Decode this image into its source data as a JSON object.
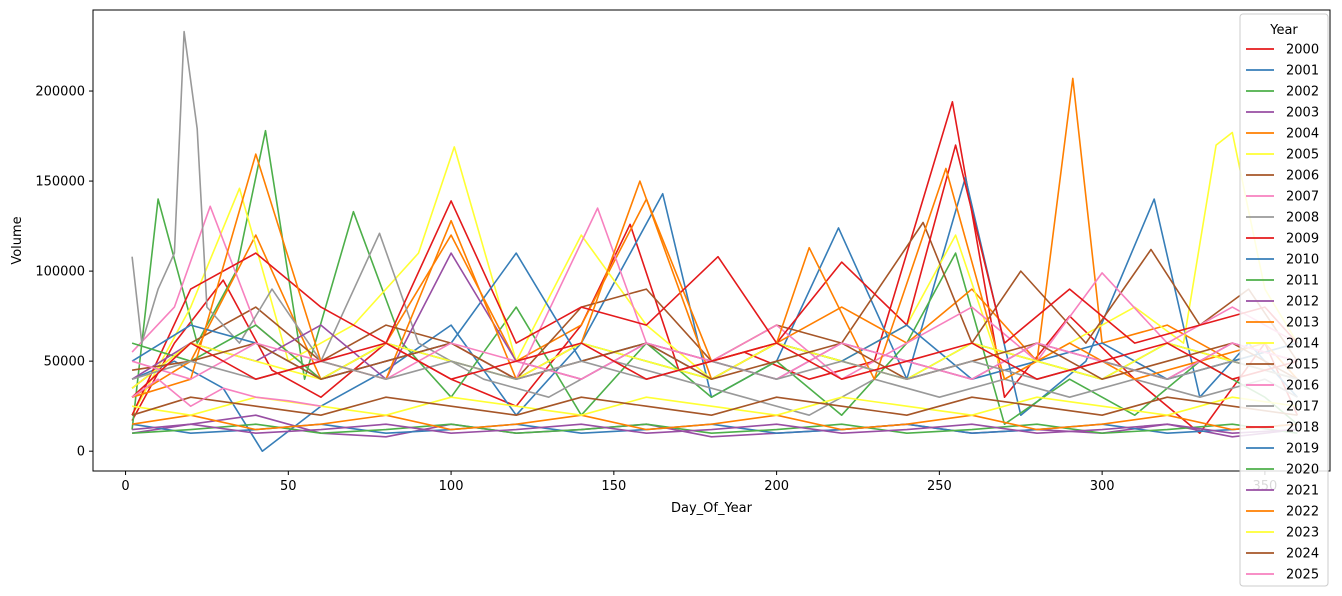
{
  "chart_data": {
    "type": "line",
    "title": "",
    "xlabel": "Day_Of_Year",
    "ylabel": "Volume",
    "xlim": [
      -10,
      370
    ],
    "ylim": [
      -11000,
      245000
    ],
    "xticks": [
      0,
      50,
      100,
      150,
      200,
      250,
      300,
      350
    ],
    "yticks": [
      0,
      50000,
      100000,
      150000,
      200000
    ],
    "grid": false,
    "legend": {
      "title": "Year",
      "placement": "right"
    },
    "series": [
      {
        "name": "2000",
        "color": "#e41a1c",
        "x": [
          2,
          15,
          30,
          45,
          60,
          80,
          100,
          120,
          140,
          155,
          170,
          190,
          210,
          230,
          254,
          270,
          290,
          310,
          330,
          350,
          360
        ],
        "y": [
          17000,
          60000,
          95000,
          45000,
          30000,
          60000,
          40000,
          25000,
          70000,
          126000,
          45000,
          55000,
          40000,
          50000,
          194000,
          30000,
          75000,
          40000,
          10000,
          60000,
          20000
        ]
      },
      {
        "name": "2001",
        "color": "#377eb8",
        "x": [
          2,
          15,
          30,
          42,
          60,
          80,
          100,
          120,
          140,
          165,
          180,
          200,
          219,
          240,
          258,
          275,
          295,
          316,
          330,
          345,
          360
        ],
        "y": [
          40000,
          50000,
          35000,
          0,
          25000,
          45000,
          70000,
          20000,
          60000,
          143000,
          30000,
          50000,
          124000,
          40000,
          152000,
          20000,
          50000,
          140000,
          30000,
          60000,
          30000
        ]
      },
      {
        "name": "2002",
        "color": "#4daf4a",
        "x": [
          2,
          10,
          22,
          34,
          43,
          55,
          70,
          85,
          100,
          120,
          140,
          160,
          180,
          200,
          220,
          240,
          255,
          270,
          290,
          310,
          330,
          350,
          360
        ],
        "y": [
          12000,
          140000,
          60000,
          100000,
          178000,
          40000,
          133000,
          60000,
          30000,
          80000,
          20000,
          60000,
          30000,
          50000,
          20000,
          60000,
          110000,
          15000,
          40000,
          20000,
          50000,
          30000,
          15000
        ]
      },
      {
        "name": "2003",
        "color": "#984ea3",
        "x": [
          2,
          20,
          40,
          60,
          80,
          100,
          120,
          140,
          160,
          180,
          200,
          220,
          240,
          260,
          280,
          300,
          320,
          340,
          360
        ],
        "y": [
          10000,
          15000,
          20000,
          10000,
          8000,
          15000,
          10000,
          12000,
          15000,
          8000,
          10000,
          12000,
          15000,
          10000,
          12000,
          10000,
          15000,
          8000,
          12000
        ]
      },
      {
        "name": "2004",
        "color": "#ff7f00",
        "x": [
          2,
          20,
          40,
          60,
          80,
          100,
          120,
          140,
          160,
          180,
          200,
          220,
          240,
          260,
          280,
          291,
          300,
          320,
          340,
          360
        ],
        "y": [
          30000,
          50000,
          120000,
          40000,
          60000,
          120000,
          50000,
          70000,
          140000,
          50000,
          60000,
          80000,
          60000,
          90000,
          50000,
          207000,
          60000,
          70000,
          50000,
          60000
        ]
      },
      {
        "name": "2005",
        "color": "#ffff33",
        "x": [
          2,
          20,
          35,
          50,
          70,
          90,
          101,
          120,
          140,
          160,
          180,
          200,
          220,
          240,
          255,
          270,
          290,
          310,
          325,
          335,
          340,
          350,
          360
        ],
        "y": [
          20000,
          80000,
          146000,
          50000,
          70000,
          110000,
          169000,
          50000,
          120000,
          70000,
          40000,
          60000,
          50000,
          70000,
          120000,
          40000,
          60000,
          80000,
          60000,
          170000,
          177000,
          90000,
          60000
        ]
      },
      {
        "name": "2006",
        "color": "#a65628",
        "x": [
          2,
          20,
          40,
          60,
          80,
          100,
          120,
          140,
          160,
          180,
          200,
          220,
          245,
          260,
          275,
          295,
          315,
          330,
          345,
          360
        ],
        "y": [
          35000,
          60000,
          80000,
          50000,
          70000,
          60000,
          40000,
          80000,
          90000,
          50000,
          70000,
          60000,
          127000,
          60000,
          100000,
          60000,
          112000,
          70000,
          90000,
          50000
        ]
      },
      {
        "name": "2007",
        "color": "#f781bf",
        "x": [
          2,
          15,
          26,
          40,
          60,
          80,
          100,
          120,
          145,
          160,
          180,
          200,
          220,
          240,
          260,
          280,
          300,
          320,
          340,
          360
        ],
        "y": [
          55000,
          80000,
          136000,
          70000,
          40000,
          50000,
          60000,
          40000,
          135000,
          60000,
          50000,
          70000,
          40000,
          60000,
          80000,
          50000,
          99000,
          60000,
          80000,
          60000
        ]
      },
      {
        "name": "2008",
        "color": "#999999",
        "x": [
          2,
          5,
          10,
          15,
          18,
          22,
          25,
          35,
          45,
          60,
          78,
          90,
          110,
          130,
          150,
          170,
          190,
          210,
          230,
          250,
          270,
          290,
          310,
          330,
          350,
          360
        ],
        "y": [
          108000,
          60000,
          90000,
          110000,
          233000,
          179000,
          80000,
          60000,
          90000,
          50000,
          121000,
          60000,
          40000,
          30000,
          50000,
          40000,
          30000,
          20000,
          40000,
          30000,
          40000,
          30000,
          40000,
          30000,
          40000,
          30000
        ]
      },
      {
        "name": "2009",
        "color": "#e41a1c",
        "x": [
          2,
          20,
          40,
          60,
          80,
          100,
          120,
          140,
          160,
          182,
          200,
          220,
          240,
          255,
          270,
          290,
          310,
          330,
          350,
          360
        ],
        "y": [
          20000,
          90000,
          110000,
          80000,
          60000,
          139000,
          60000,
          80000,
          70000,
          108000,
          60000,
          105000,
          70000,
          170000,
          60000,
          90000,
          60000,
          70000,
          80000,
          60000
        ]
      },
      {
        "name": "2010",
        "color": "#377eb8",
        "x": [
          2,
          20,
          40,
          60,
          80,
          100,
          120,
          140,
          160,
          180,
          200,
          220,
          240,
          260,
          280,
          300,
          320,
          340,
          360
        ],
        "y": [
          50000,
          70000,
          60000,
          40000,
          50000,
          60000,
          110000,
          50000,
          60000,
          40000,
          60000,
          50000,
          70000,
          40000,
          50000,
          60000,
          40000,
          50000,
          60000
        ]
      },
      {
        "name": "2011",
        "color": "#4daf4a",
        "x": [
          2,
          20,
          40,
          60,
          80,
          100,
          120,
          140,
          160,
          180,
          200,
          220,
          240,
          260,
          280,
          300,
          320,
          340,
          360
        ],
        "y": [
          60000,
          50000,
          70000,
          40000,
          60000,
          50000,
          40000,
          60000,
          50000,
          40000,
          60000,
          50000,
          40000,
          60000,
          50000,
          40000,
          60000,
          50000,
          40000
        ]
      },
      {
        "name": "2012",
        "color": "#984ea3",
        "x": [
          2,
          20,
          40,
          60,
          80,
          100,
          120,
          140,
          160,
          180,
          200,
          220,
          240,
          260,
          280,
          300,
          320,
          340,
          360
        ],
        "y": [
          40000,
          60000,
          50000,
          70000,
          40000,
          110000,
          50000,
          40000,
          60000,
          50000,
          40000,
          60000,
          50000,
          40000,
          60000,
          50000,
          40000,
          60000,
          50000
        ]
      },
      {
        "name": "2013",
        "color": "#ff7f00",
        "x": [
          2,
          20,
          40,
          60,
          80,
          100,
          120,
          140,
          158,
          180,
          200,
          210,
          230,
          252,
          270,
          290,
          310,
          330,
          350,
          360
        ],
        "y": [
          30000,
          40000,
          165000,
          50000,
          40000,
          128000,
          40000,
          60000,
          150000,
          40000,
          60000,
          113000,
          40000,
          157000,
          40000,
          60000,
          40000,
          50000,
          60000,
          40000
        ]
      },
      {
        "name": "2014",
        "color": "#ffff33",
        "x": [
          2,
          20,
          40,
          60,
          80,
          100,
          120,
          140,
          160,
          180,
          200,
          220,
          240,
          260,
          280,
          300,
          320,
          340,
          360
        ],
        "y": [
          35000,
          60000,
          50000,
          40000,
          60000,
          50000,
          40000,
          60000,
          50000,
          40000,
          60000,
          50000,
          40000,
          60000,
          50000,
          40000,
          60000,
          50000,
          40000
        ]
      },
      {
        "name": "2015",
        "color": "#a65628",
        "x": [
          2,
          20,
          40,
          60,
          80,
          100,
          120,
          140,
          160,
          180,
          200,
          220,
          240,
          260,
          280,
          300,
          320,
          340,
          360
        ],
        "y": [
          45000,
          50000,
          60000,
          40000,
          50000,
          60000,
          40000,
          50000,
          60000,
          40000,
          50000,
          60000,
          40000,
          50000,
          60000,
          40000,
          50000,
          60000,
          40000
        ]
      },
      {
        "name": "2016",
        "color": "#f781bf",
        "x": [
          2,
          20,
          40,
          60,
          80,
          100,
          120,
          140,
          160,
          180,
          200,
          220,
          240,
          260,
          280,
          300,
          320,
          340,
          360
        ],
        "y": [
          50000,
          40000,
          60000,
          50000,
          40000,
          60000,
          50000,
          40000,
          60000,
          50000,
          40000,
          60000,
          50000,
          40000,
          60000,
          50000,
          40000,
          60000,
          50000
        ]
      },
      {
        "name": "2017",
        "color": "#999999",
        "x": [
          2,
          20,
          40,
          60,
          80,
          100,
          120,
          140,
          160,
          180,
          200,
          220,
          240,
          260,
          280,
          300,
          320,
          340,
          360
        ],
        "y": [
          40000,
          50000,
          40000,
          50000,
          40000,
          50000,
          40000,
          50000,
          40000,
          50000,
          40000,
          50000,
          40000,
          50000,
          40000,
          50000,
          40000,
          50000,
          40000
        ]
      },
      {
        "name": "2018",
        "color": "#e41a1c",
        "x": [
          2,
          20,
          40,
          60,
          80,
          100,
          120,
          140,
          160,
          180,
          200,
          220,
          240,
          260,
          280,
          300,
          320,
          340,
          360
        ],
        "y": [
          30000,
          60000,
          40000,
          50000,
          60000,
          40000,
          50000,
          60000,
          40000,
          50000,
          60000,
          40000,
          50000,
          60000,
          40000,
          50000,
          60000,
          40000,
          50000
        ]
      },
      {
        "name": "2019",
        "color": "#377eb8",
        "x": [
          2,
          20,
          40,
          60,
          80,
          100,
          120,
          140,
          160,
          180,
          200,
          220,
          240,
          260,
          280,
          300,
          320,
          340,
          360
        ],
        "y": [
          15000,
          10000,
          12000,
          15000,
          10000,
          12000,
          15000,
          10000,
          12000,
          15000,
          10000,
          12000,
          15000,
          10000,
          12000,
          15000,
          10000,
          12000,
          15000
        ]
      },
      {
        "name": "2020",
        "color": "#4daf4a",
        "x": [
          2,
          20,
          40,
          60,
          80,
          100,
          120,
          140,
          160,
          180,
          200,
          220,
          240,
          260,
          280,
          300,
          320,
          340,
          360
        ],
        "y": [
          10000,
          12000,
          15000,
          10000,
          12000,
          15000,
          10000,
          12000,
          15000,
          10000,
          12000,
          15000,
          10000,
          12000,
          15000,
          10000,
          12000,
          15000,
          10000
        ]
      },
      {
        "name": "2021",
        "color": "#984ea3",
        "x": [
          2,
          20,
          40,
          60,
          80,
          100,
          120,
          140,
          160,
          180,
          200,
          220,
          240,
          260,
          280,
          300,
          320,
          340,
          360
        ],
        "y": [
          12000,
          15000,
          10000,
          12000,
          15000,
          10000,
          12000,
          15000,
          10000,
          12000,
          15000,
          10000,
          12000,
          15000,
          10000,
          12000,
          15000,
          10000,
          12000
        ]
      },
      {
        "name": "2022",
        "color": "#ff7f00",
        "x": [
          2,
          20,
          40,
          60,
          80,
          100,
          120,
          140,
          160,
          180,
          200,
          220,
          240,
          260,
          280,
          300,
          320,
          340,
          360
        ],
        "y": [
          15000,
          20000,
          12000,
          15000,
          20000,
          12000,
          15000,
          20000,
          12000,
          15000,
          20000,
          12000,
          15000,
          20000,
          12000,
          15000,
          20000,
          12000,
          15000
        ]
      },
      {
        "name": "2023",
        "color": "#ffff33",
        "x": [
          2,
          20,
          40,
          60,
          80,
          100,
          120,
          140,
          160,
          180,
          200,
          220,
          240,
          260,
          280,
          300,
          320,
          340,
          360
        ],
        "y": [
          25000,
          20000,
          30000,
          25000,
          20000,
          30000,
          25000,
          20000,
          30000,
          25000,
          20000,
          30000,
          25000,
          20000,
          30000,
          25000,
          20000,
          30000,
          25000
        ]
      },
      {
        "name": "2024",
        "color": "#a65628",
        "x": [
          2,
          20,
          40,
          60,
          80,
          100,
          120,
          140,
          160,
          180,
          200,
          220,
          240,
          260,
          280,
          300,
          320,
          340,
          360
        ],
        "y": [
          20000,
          30000,
          25000,
          20000,
          30000,
          25000,
          20000,
          30000,
          25000,
          20000,
          30000,
          25000,
          20000,
          30000,
          25000,
          20000,
          30000,
          25000,
          20000
        ]
      },
      {
        "name": "2025",
        "color": "#f781bf",
        "x": [
          2,
          10,
          20,
          30,
          40,
          50,
          60
        ],
        "y": [
          30000,
          40000,
          25000,
          35000,
          30000,
          28000,
          25000
        ]
      }
    ]
  }
}
